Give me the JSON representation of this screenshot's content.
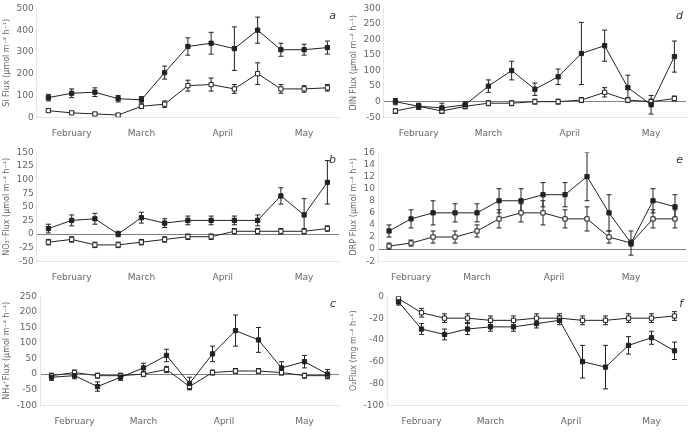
{
  "chart_data": [
    {
      "type": "line",
      "y_label": "Si Flux (μmol m⁻² h⁻¹)",
      "annotations": [
        "a"
      ],
      "x": [
        0,
        1,
        2,
        3,
        4,
        5,
        6,
        7,
        8,
        9,
        10,
        11,
        12
      ],
      "xlim": [
        -0.5,
        12.5
      ],
      "xticks": [
        {
          "value": 1,
          "label": "February"
        },
        {
          "value": 4,
          "label": "March"
        },
        {
          "value": 7.5,
          "label": "April"
        },
        {
          "value": 11,
          "label": "May"
        }
      ],
      "ylim": [
        0,
        500
      ],
      "yticks": [
        0,
        100,
        200,
        300,
        400,
        500
      ],
      "grid": false,
      "series": [
        {
          "color": "#222222",
          "marker": "square",
          "line_style": "solid",
          "values": [
            90,
            110,
            115,
            85,
            80,
            205,
            325,
            340,
            315,
            400,
            310,
            310,
            320
          ],
          "errors": [
            15,
            20,
            20,
            15,
            15,
            30,
            40,
            50,
            100,
            60,
            30,
            25,
            30
          ]
        },
        {
          "color": "#222222",
          "marker": "open_square",
          "line_style": "solid",
          "values": [
            30,
            20,
            15,
            10,
            50,
            60,
            145,
            150,
            130,
            200,
            130,
            130,
            135
          ],
          "errors": [
            8,
            5,
            5,
            5,
            10,
            15,
            25,
            30,
            20,
            50,
            20,
            15,
            15
          ]
        }
      ]
    },
    {
      "type": "line",
      "y_label": "NO₃⁻Flux (μmol m⁻² h⁻¹)",
      "annotations": [
        "b"
      ],
      "x": [
        0,
        1,
        2,
        3,
        4,
        5,
        6,
        7,
        8,
        9,
        10,
        11,
        12
      ],
      "xlim": [
        -0.5,
        12.5
      ],
      "xticks": [
        {
          "value": 1,
          "label": "February"
        },
        {
          "value": 4,
          "label": "March"
        },
        {
          "value": 7.5,
          "label": "April"
        },
        {
          "value": 11,
          "label": "May"
        }
      ],
      "ylim": [
        -50,
        150
      ],
      "yticks": [
        -50,
        -25,
        0,
        25,
        50,
        75,
        100,
        125,
        150
      ],
      "grid": false,
      "series": [
        {
          "color": "#222222",
          "marker": "square",
          "line_style": "solid",
          "values": [
            10,
            25,
            28,
            0,
            30,
            20,
            25,
            25,
            25,
            25,
            70,
            35,
            95
          ],
          "errors": [
            8,
            10,
            10,
            5,
            10,
            8,
            8,
            8,
            8,
            10,
            15,
            30,
            40
          ]
        },
        {
          "color": "#222222",
          "marker": "open_square",
          "line_style": "solid",
          "values": [
            -15,
            -10,
            -20,
            -20,
            -15,
            -10,
            -5,
            -5,
            5,
            5,
            5,
            5,
            10
          ],
          "errors": [
            5,
            5,
            5,
            5,
            5,
            5,
            5,
            5,
            5,
            5,
            5,
            5,
            5
          ]
        }
      ]
    },
    {
      "type": "line",
      "y_label": "NH₄⁺Flux (μmol m⁻² h⁻¹)",
      "annotations": [
        "c"
      ],
      "x": [
        0,
        1,
        2,
        3,
        4,
        5,
        6,
        7,
        8,
        9,
        10,
        11,
        12
      ],
      "xlim": [
        -0.5,
        12.5
      ],
      "xticks": [
        {
          "value": 1,
          "label": "February"
        },
        {
          "value": 4,
          "label": "March"
        },
        {
          "value": 7.5,
          "label": "April"
        },
        {
          "value": 11,
          "label": "May"
        }
      ],
      "ylim": [
        -100,
        250
      ],
      "yticks": [
        -100,
        -50,
        0,
        50,
        100,
        150,
        200,
        250
      ],
      "grid": false,
      "series": [
        {
          "color": "#222222",
          "marker": "square",
          "line_style": "solid",
          "values": [
            -10,
            -5,
            -40,
            -10,
            20,
            60,
            -30,
            65,
            140,
            110,
            20,
            40,
            0
          ],
          "errors": [
            10,
            10,
            15,
            10,
            15,
            20,
            20,
            25,
            50,
            40,
            20,
            20,
            15
          ]
        },
        {
          "color": "#222222",
          "marker": "open_square",
          "line_style": "solid",
          "values": [
            -5,
            5,
            -5,
            -5,
            0,
            15,
            -40,
            5,
            10,
            10,
            5,
            -5,
            -5
          ],
          "errors": [
            8,
            8,
            8,
            8,
            8,
            10,
            10,
            8,
            8,
            8,
            8,
            8,
            8
          ]
        }
      ]
    },
    {
      "type": "line",
      "y_label": "DIN Flux (μmol m⁻² h⁻¹)",
      "annotations": [
        "d"
      ],
      "x": [
        0,
        1,
        2,
        3,
        4,
        5,
        6,
        7,
        8,
        9,
        10,
        11,
        12
      ],
      "xlim": [
        -0.5,
        12.5
      ],
      "xticks": [
        {
          "value": 1,
          "label": "February"
        },
        {
          "value": 4,
          "label": "March"
        },
        {
          "value": 7.5,
          "label": "April"
        },
        {
          "value": 11,
          "label": "May"
        }
      ],
      "ylim": [
        -50,
        300
      ],
      "yticks": [
        -50,
        0,
        50,
        100,
        150,
        200,
        250,
        300
      ],
      "grid": false,
      "series": [
        {
          "color": "#222222",
          "marker": "square",
          "line_style": "solid",
          "values": [
            0,
            -15,
            -20,
            -10,
            50,
            100,
            40,
            80,
            155,
            180,
            45,
            -10,
            145
          ],
          "errors": [
            10,
            10,
            15,
            10,
            20,
            30,
            20,
            25,
            100,
            50,
            40,
            30,
            50
          ]
        },
        {
          "color": "#222222",
          "marker": "open_square",
          "line_style": "solid",
          "values": [
            -30,
            -15,
            -30,
            -15,
            -5,
            -5,
            0,
            0,
            5,
            30,
            5,
            0,
            10
          ],
          "errors": [
            8,
            8,
            8,
            8,
            8,
            8,
            8,
            8,
            8,
            15,
            8,
            8,
            8
          ]
        }
      ]
    },
    {
      "type": "line",
      "y_label": "DRP Flux (μmol m⁻² h⁻¹)",
      "annotations": [
        "e"
      ],
      "x": [
        0,
        1,
        2,
        3,
        4,
        5,
        6,
        7,
        8,
        9,
        10,
        11,
        12,
        13
      ],
      "xlim": [
        -0.5,
        13.5
      ],
      "xticks": [
        {
          "value": 1,
          "label": "February"
        },
        {
          "value": 4,
          "label": "March"
        },
        {
          "value": 7.5,
          "label": "April"
        },
        {
          "value": 11,
          "label": "May"
        }
      ],
      "ylim": [
        -2,
        16
      ],
      "yticks": [
        -2,
        0,
        2,
        4,
        6,
        8,
        10,
        12,
        14,
        16
      ],
      "grid": false,
      "series": [
        {
          "color": "#222222",
          "marker": "square",
          "line_style": "solid",
          "values": [
            3,
            5,
            6,
            6,
            6,
            8,
            8,
            9,
            9,
            12,
            6,
            1,
            8,
            7
          ],
          "errors": [
            1,
            1.5,
            2,
            1.5,
            1.5,
            2,
            2,
            2,
            2,
            4,
            3,
            2,
            2,
            2
          ]
        },
        {
          "color": "#222222",
          "marker": "open_square",
          "line_style": "solid",
          "values": [
            0.5,
            1,
            2,
            2,
            3,
            5,
            6,
            6,
            5,
            5,
            2,
            1,
            5,
            5
          ],
          "errors": [
            0.5,
            0.5,
            1,
            1,
            1,
            1.5,
            1.5,
            2,
            1.5,
            2,
            1,
            0.5,
            1.5,
            1.5
          ]
        }
      ]
    },
    {
      "type": "line",
      "y_label": "O₂Flux (mg m⁻² h⁻¹)",
      "annotations": [
        "f"
      ],
      "x": [
        0,
        1,
        2,
        3,
        4,
        5,
        6,
        7,
        8,
        9,
        10,
        11,
        12
      ],
      "xlim": [
        -0.5,
        12.5
      ],
      "xticks": [
        {
          "value": 1,
          "label": "February"
        },
        {
          "value": 4,
          "label": "March"
        },
        {
          "value": 7.5,
          "label": "April"
        },
        {
          "value": 11,
          "label": "May"
        }
      ],
      "ylim": [
        -100,
        0
      ],
      "yticks": [
        -100,
        -80,
        -60,
        -40,
        -20,
        0
      ],
      "grid": false,
      "series": [
        {
          "color": "#222222",
          "marker": "square",
          "line_style": "solid",
          "values": [
            -5,
            -30,
            -35,
            -30,
            -28,
            -28,
            -25,
            -22,
            -60,
            -65,
            -45,
            -38,
            -50
          ],
          "errors": [
            3,
            5,
            5,
            5,
            4,
            4,
            4,
            4,
            15,
            20,
            8,
            6,
            8
          ]
        },
        {
          "color": "#222222",
          "marker": "open_square",
          "line_style": "solid",
          "values": [
            -2,
            -15,
            -20,
            -20,
            -22,
            -22,
            -20,
            -20,
            -22,
            -22,
            -20,
            -20,
            -18
          ],
          "errors": [
            2,
            4,
            4,
            4,
            4,
            4,
            4,
            4,
            4,
            4,
            4,
            4,
            4
          ]
        }
      ]
    }
  ]
}
